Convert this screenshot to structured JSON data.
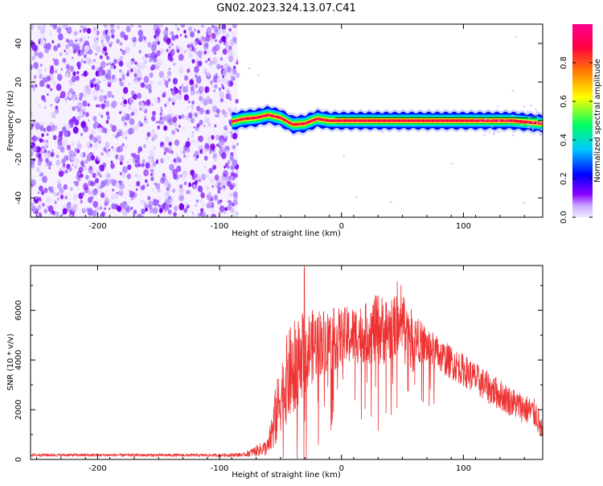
{
  "figure_title": "GN02.2023.324.13.07.C41",
  "chart_data": [
    {
      "type": "heatmap",
      "title": "GN02.2023.324.13.07.C41",
      "xlabel": "Height of straight line (km)",
      "ylabel": "Frequency (Hz)",
      "xlim": [
        -255,
        165
      ],
      "ylim": [
        -50,
        50
      ],
      "xticks": [
        -200,
        -100,
        0,
        100
      ],
      "yticks": [
        -40,
        -20,
        0,
        20,
        40
      ],
      "grid": false,
      "noise_region": {
        "x": [
          -255,
          -85
        ],
        "y": [
          -50,
          50
        ],
        "level": "low (0.0-0.15)"
      },
      "signal_band": {
        "x": [
          -90,
          165
        ],
        "center": [
          [
            -90,
            -0.5
          ],
          [
            -80,
            1
          ],
          [
            -70,
            1.5
          ],
          [
            -60,
            3
          ],
          [
            -50,
            1.5
          ],
          [
            -40,
            -2
          ],
          [
            -30,
            -1.5
          ],
          [
            -20,
            1
          ],
          [
            -10,
            0
          ],
          [
            0,
            0
          ],
          [
            20,
            0
          ],
          [
            50,
            0
          ],
          [
            100,
            0
          ],
          [
            140,
            0
          ],
          [
            165,
            -1.5
          ]
        ],
        "half_width_hz": 2.5,
        "peak_level": 0.95
      },
      "colorbar": {
        "label": "Normalized spectral amplitude",
        "range": [
          0,
          1
        ],
        "ticks": [
          0.0,
          0.2,
          0.4,
          0.6,
          0.8
        ],
        "colors": [
          "#f0e8ff",
          "#8a00ff",
          "#0000ff",
          "#00c8ff",
          "#00ff00",
          "#ffff00",
          "#ff8000",
          "#ff0040",
          "#ff0090"
        ]
      }
    },
    {
      "type": "line",
      "xlabel": "Height of straight line (km)",
      "ylabel": "SNR (10 * v/v)",
      "xlim": [
        -255,
        165
      ],
      "ylim": [
        0,
        7800
      ],
      "xticks": [
        -200,
        -100,
        0,
        100
      ],
      "yticks": [
        0,
        2000,
        4000,
        6000
      ],
      "grid": false,
      "color": "#ee3333",
      "envelope": {
        "x": [
          -255,
          -100,
          -80,
          -60,
          -55,
          -50,
          -45,
          -40,
          -35,
          -30,
          -25,
          -20,
          -10,
          0,
          10,
          20,
          30,
          40,
          50,
          60,
          80,
          100,
          120,
          140,
          160,
          165
        ],
        "base": [
          180,
          170,
          190,
          500,
          1500,
          2500,
          3200,
          3600,
          4000,
          4300,
          4500,
          4700,
          4800,
          4900,
          5000,
          5100,
          5200,
          5200,
          5600,
          4900,
          4200,
          3600,
          2900,
          2300,
          1800,
          900
        ],
        "amp": [
          60,
          60,
          80,
          350,
          1200,
          1400,
          1800,
          2000,
          1800,
          1600,
          1500,
          1400,
          1300,
          1200,
          1200,
          1200,
          1500,
          1300,
          1100,
          900,
          700,
          650,
          650,
          600,
          600,
          500
        ]
      },
      "peak": {
        "x": -35,
        "y": 7800
      },
      "secondary_peak": {
        "x": 48,
        "y": 7300
      }
    }
  ]
}
